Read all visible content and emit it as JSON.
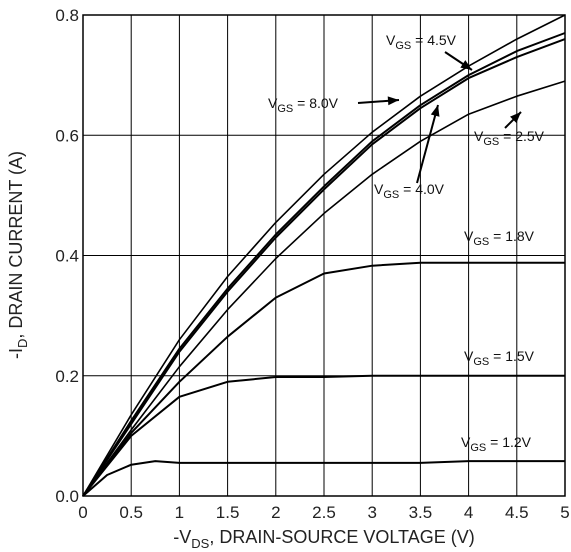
{
  "chart_data": {
    "type": "line",
    "xlabel_prefix": "-V",
    "xlabel_sub": "DS",
    "xlabel_rest": ", DRAIN-SOURCE VOLTAGE (V)",
    "ylabel_prefix": "-I",
    "ylabel_sub": "D",
    "ylabel_rest": ", DRAIN CURRENT (A)",
    "xlim": [
      0,
      5
    ],
    "ylim": [
      0,
      0.8
    ],
    "xticks": [
      "0",
      "0.5",
      "1",
      "1.5",
      "2",
      "2.5",
      "3",
      "3.5",
      "4",
      "4.5",
      "5"
    ],
    "yticks": [
      "0.0",
      "0.2",
      "0.4",
      "0.6",
      "0.8"
    ],
    "grid": true,
    "series": [
      {
        "name": "VGS = 8.0V",
        "sym": "V",
        "sub": "GS",
        "val": " = 8.0V",
        "width": 1.6,
        "x": [
          0,
          0.5,
          1,
          1.5,
          2,
          2.5,
          3,
          3.5,
          4,
          4.5,
          5
        ],
        "y": [
          0,
          0.135,
          0.26,
          0.365,
          0.455,
          0.535,
          0.605,
          0.665,
          0.715,
          0.76,
          0.8
        ]
      },
      {
        "name": "VGS = 4.5V",
        "sym": "V",
        "sub": "GS",
        "val": " = 4.5V",
        "width": 2.0,
        "x": [
          0,
          0.5,
          1,
          1.5,
          2,
          2.5,
          3,
          3.5,
          4,
          4.5,
          5
        ],
        "y": [
          0,
          0.125,
          0.245,
          0.345,
          0.435,
          0.515,
          0.59,
          0.65,
          0.7,
          0.74,
          0.77
        ]
      },
      {
        "name": "VGS = 4.0V",
        "sym": "V",
        "sub": "GS",
        "val": " = 4.0V",
        "width": 2.0,
        "x": [
          0,
          0.5,
          1,
          1.5,
          2,
          2.5,
          3,
          3.5,
          4,
          4.5,
          5
        ],
        "y": [
          0,
          0.12,
          0.24,
          0.34,
          0.43,
          0.51,
          0.585,
          0.645,
          0.695,
          0.73,
          0.76
        ]
      },
      {
        "name": "VGS = 2.5V",
        "sym": "V",
        "sub": "GS",
        "val": " = 2.5V",
        "width": 1.6,
        "x": [
          0,
          0.5,
          1,
          1.5,
          2,
          2.5,
          3,
          3.5,
          4,
          4.5,
          5
        ],
        "y": [
          0,
          0.11,
          0.215,
          0.31,
          0.395,
          0.47,
          0.535,
          0.59,
          0.635,
          0.665,
          0.69
        ]
      },
      {
        "name": "VGS = 1.8V",
        "sym": "V",
        "sub": "GS",
        "val": " = 1.8V",
        "width": 2.0,
        "x": [
          0,
          0.5,
          1,
          1.5,
          2,
          2.5,
          3,
          3.5,
          4,
          4.5,
          5
        ],
        "y": [
          0,
          0.105,
          0.19,
          0.265,
          0.33,
          0.37,
          0.383,
          0.388,
          0.388,
          0.388,
          0.388
        ]
      },
      {
        "name": "VGS = 1.5V",
        "sym": "V",
        "sub": "GS",
        "val": " = 1.5V",
        "width": 2.0,
        "x": [
          0,
          0.5,
          1,
          1.5,
          2,
          2.5,
          3,
          3.5,
          4,
          4.5,
          5
        ],
        "y": [
          0,
          0.1,
          0.165,
          0.19,
          0.198,
          0.198,
          0.2,
          0.2,
          0.2,
          0.2,
          0.2
        ]
      },
      {
        "name": "VGS = 1.2V",
        "sym": "V",
        "sub": "GS",
        "val": " = 1.2V",
        "width": 2.0,
        "x": [
          0,
          0.25,
          0.5,
          0.75,
          1,
          1.5,
          2,
          2.5,
          3,
          3.5,
          4,
          4.5,
          5
        ],
        "y": [
          0,
          0.035,
          0.052,
          0.058,
          0.055,
          0.055,
          0.055,
          0.055,
          0.055,
          0.055,
          0.058,
          0.058,
          0.058
        ]
      }
    ]
  }
}
